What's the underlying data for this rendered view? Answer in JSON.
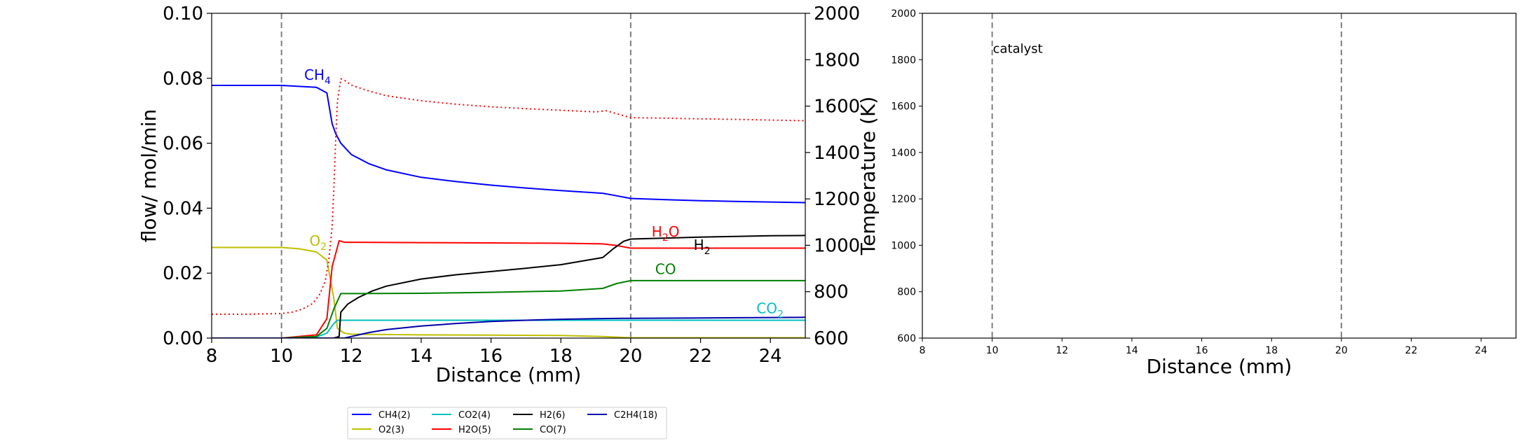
{
  "chart_data": [
    {
      "type": "line",
      "xlabel": "Distance (mm)",
      "ylabel": "flow/ mol/min",
      "y2label": "Temperature (K)",
      "xlim": [
        8,
        25
      ],
      "ylim": [
        0,
        0.1
      ],
      "y2lim": [
        600,
        2000
      ],
      "xticks": [
        "8",
        "10",
        "12",
        "14",
        "16",
        "18",
        "20",
        "22",
        "24"
      ],
      "yticks": [
        "0.00",
        "0.02",
        "0.04",
        "0.06",
        "0.08",
        "0.10"
      ],
      "y2ticks": [
        "600",
        "800",
        "1000",
        "1200",
        "1400",
        "1600",
        "1800",
        "2000"
      ],
      "vlines": [
        10,
        20
      ],
      "grid": false,
      "legend": {
        "placement": "bottom-center",
        "columns": 4
      },
      "series": [
        {
          "name": "CH4(2)",
          "label": "CH4",
          "color": "#0000ff",
          "x": [
            8,
            10,
            11.0,
            11.3,
            11.45,
            11.55,
            11.7,
            12.0,
            12.5,
            13,
            14,
            15,
            16,
            17,
            18,
            19.2,
            19.5,
            20,
            21,
            22,
            23,
            24,
            25
          ],
          "y": [
            0.0778,
            0.0778,
            0.0772,
            0.0755,
            0.066,
            0.063,
            0.06,
            0.0565,
            0.0537,
            0.0518,
            0.0495,
            0.0482,
            0.0471,
            0.0462,
            0.0454,
            0.0446,
            0.044,
            0.043,
            0.0426,
            0.0423,
            0.0421,
            0.0419,
            0.0417
          ]
        },
        {
          "name": "O2(3)",
          "label": "O2",
          "color": "#bfbf00",
          "x": [
            8,
            10,
            10.5,
            11.0,
            11.3,
            11.5,
            11.6,
            11.8,
            12,
            13,
            14,
            16,
            18,
            19.2,
            20,
            25
          ],
          "y": [
            0.0279,
            0.0279,
            0.0275,
            0.0265,
            0.024,
            0.012,
            0.003,
            0.0015,
            0.0012,
            0.0011,
            0.001,
            0.0009,
            0.0008,
            0.0005,
            0.0001,
            0.0001
          ]
        },
        {
          "name": "CO2(4)",
          "label": "CO2",
          "color": "#00bfbf",
          "x": [
            8,
            10,
            11.0,
            11.3,
            11.5,
            11.6,
            11.8,
            14,
            18,
            20,
            25
          ],
          "y": [
            0,
            0,
            0.0003,
            0.0015,
            0.0045,
            0.0055,
            0.0055,
            0.0055,
            0.0055,
            0.0055,
            0.0055
          ]
        },
        {
          "name": "H2O(5)",
          "label": "H2O",
          "color": "#ff0000",
          "x": [
            8,
            10,
            11.0,
            11.3,
            11.45,
            11.55,
            11.65,
            11.8,
            12,
            14,
            16,
            18,
            19.2,
            19.6,
            20,
            22,
            25
          ],
          "y": [
            0,
            0,
            0.001,
            0.006,
            0.022,
            0.026,
            0.03,
            0.0295,
            0.0295,
            0.0294,
            0.0293,
            0.0292,
            0.029,
            0.0285,
            0.0277,
            0.0277,
            0.0277
          ]
        },
        {
          "name": "H2(6)",
          "label": "H2",
          "color": "#000000",
          "x": [
            8,
            11.5,
            11.65,
            11.7,
            11.9,
            12.2,
            12.6,
            13,
            14,
            15,
            16,
            17,
            18,
            19.2,
            19.5,
            19.8,
            20,
            21,
            22,
            23,
            24,
            25
          ],
          "y": [
            0,
            0,
            0.0005,
            0.008,
            0.0105,
            0.0125,
            0.0145,
            0.016,
            0.0182,
            0.0195,
            0.0205,
            0.0215,
            0.0226,
            0.0248,
            0.0275,
            0.0298,
            0.0305,
            0.0308,
            0.0311,
            0.0313,
            0.0315,
            0.0316
          ]
        },
        {
          "name": "CO(7)",
          "label": "CO",
          "color": "#008000",
          "x": [
            8,
            10,
            11.0,
            11.3,
            11.5,
            11.7,
            12,
            14,
            16,
            18,
            19.2,
            19.6,
            20,
            22,
            25
          ],
          "y": [
            0,
            0,
            0.0005,
            0.003,
            0.009,
            0.0137,
            0.0137,
            0.0138,
            0.0141,
            0.0145,
            0.0153,
            0.0168,
            0.0177,
            0.0177,
            0.0177
          ]
        },
        {
          "name": "C2H4(18)",
          "label": "",
          "color": "#0000aa",
          "x": [
            8,
            11.8,
            12,
            12.5,
            13,
            14,
            15,
            16,
            17,
            18,
            19,
            20,
            22,
            25
          ],
          "y": [
            0,
            0,
            0.0005,
            0.0017,
            0.0026,
            0.0037,
            0.0045,
            0.0051,
            0.0055,
            0.0058,
            0.006,
            0.0061,
            0.0062,
            0.0064
          ]
        },
        {
          "name": "Temperature",
          "label": "",
          "color": "#ff0000",
          "dashed": true,
          "axis": "right",
          "x": [
            8,
            9,
            10,
            10.3,
            10.6,
            10.9,
            11.1,
            11.25,
            11.35,
            11.45,
            11.5,
            11.55,
            11.6,
            11.7,
            11.8,
            12,
            12.5,
            13,
            14,
            15,
            16,
            17,
            18,
            19,
            19.3,
            19.6,
            20,
            21,
            22,
            23,
            24,
            25
          ],
          "y": [
            703,
            703,
            706,
            712,
            725,
            750,
            790,
            845,
            930,
            1080,
            1250,
            1450,
            1620,
            1718,
            1712,
            1690,
            1665,
            1645,
            1623,
            1608,
            1597,
            1589,
            1582,
            1575,
            1580,
            1567,
            1550,
            1548,
            1545,
            1543,
            1540,
            1537
          ]
        }
      ],
      "annotations": [
        {
          "text": "CH",
          "sub": "4",
          "x": 10.65,
          "y": 0.0795,
          "color": "#0000ff"
        },
        {
          "text": "O",
          "sub": "2",
          "x": 10.8,
          "y": 0.0285,
          "color": "#bfbf00"
        },
        {
          "text": "H",
          "sub": "2",
          "post": "O",
          "x": 20.6,
          "y": 0.0312,
          "color": "#ff0000"
        },
        {
          "text": "H",
          "sub": "2",
          "x": 21.8,
          "y": 0.0272,
          "color": "#000000"
        },
        {
          "text": "CO",
          "sub": "",
          "x": 20.7,
          "y": 0.0197,
          "color": "#008000"
        },
        {
          "text": "CO",
          "sub": "2",
          "x": 23.6,
          "y": 0.0077,
          "color": "#00bfbf"
        }
      ]
    },
    {
      "type": "line",
      "xlabel": "Distance (mm)",
      "xlim": [
        8,
        25
      ],
      "ylim": [
        600,
        2000
      ],
      "xticks": [
        "8",
        "10",
        "12",
        "14",
        "16",
        "18",
        "20",
        "22",
        "24"
      ],
      "yticks": [
        "600",
        "800",
        "1000",
        "1200",
        "1400",
        "1600",
        "1800",
        "2000"
      ],
      "vlines": [
        10,
        20
      ],
      "grid": false,
      "annotations": [
        {
          "text": "catalyst",
          "x": 10,
          "y": 1830
        }
      ],
      "series": []
    }
  ]
}
